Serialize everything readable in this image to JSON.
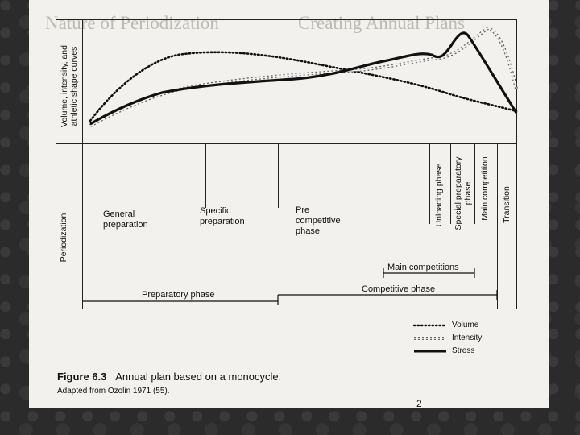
{
  "background_text": {
    "left": "Nature of Periodization",
    "right": "Creating Annual Plans"
  },
  "figure": {
    "y_axis_label": "Volume, intensity, and\nathletic shape curves",
    "row_label": "Periodization",
    "phases": {
      "general": "General\npreparation",
      "specific": "Specific\npreparation",
      "precompetitive": "Pre\ncompetitive\nphase",
      "unloading": "Unloading phase",
      "special_prep": "Special preparatory\nphase",
      "main_competition": "Main competition",
      "transition": "Transition"
    },
    "bars": {
      "main_competitions": "Main competitions",
      "competitive_phase": "Competitive phase",
      "preparatory_phase": "Preparatory phase"
    },
    "legend": [
      {
        "label": "Volume",
        "style": "dotted"
      },
      {
        "label": "Intensity",
        "style": "double-dotted"
      },
      {
        "label": "Stress",
        "style": "solid"
      }
    ]
  },
  "caption": {
    "figure_number": "Figure 6.3",
    "title": "Annual plan based on a monocycle.",
    "source": "Adapted from Ozolin 1971 (55)."
  },
  "footer_fragment": "2"
}
